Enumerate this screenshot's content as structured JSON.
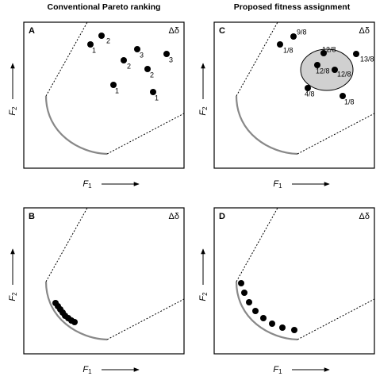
{
  "column_titles": [
    "Conventional Pareto ranking",
    "Proposed fitness assignment"
  ],
  "panels": [
    {
      "letter": "A",
      "corner_label": "Δδ",
      "x_axis": {
        "symbol": "F",
        "index": "1"
      },
      "y_axis": {
        "symbol": "F",
        "index": "2"
      },
      "point_labels": [
        "2",
        "1",
        "3",
        "2",
        "3",
        "2",
        "1",
        "1"
      ]
    },
    {
      "letter": "C",
      "corner_label": "Δδ",
      "x_axis": {
        "symbol": "F",
        "index": "1"
      },
      "y_axis": {
        "symbol": "F",
        "index": "2"
      },
      "point_labels": [
        "9/8",
        "1/8",
        "13/8",
        "12/8",
        "12/8",
        "12/8",
        "4/8",
        "1/8"
      ]
    },
    {
      "letter": "B",
      "corner_label": "Δδ",
      "x_axis": {
        "symbol": "F",
        "index": "1"
      },
      "y_axis": {
        "symbol": "F",
        "index": "2"
      }
    },
    {
      "letter": "D",
      "corner_label": "Δδ",
      "x_axis": {
        "symbol": "F",
        "index": "1"
      },
      "y_axis": {
        "symbol": "F",
        "index": "2"
      }
    }
  ]
}
